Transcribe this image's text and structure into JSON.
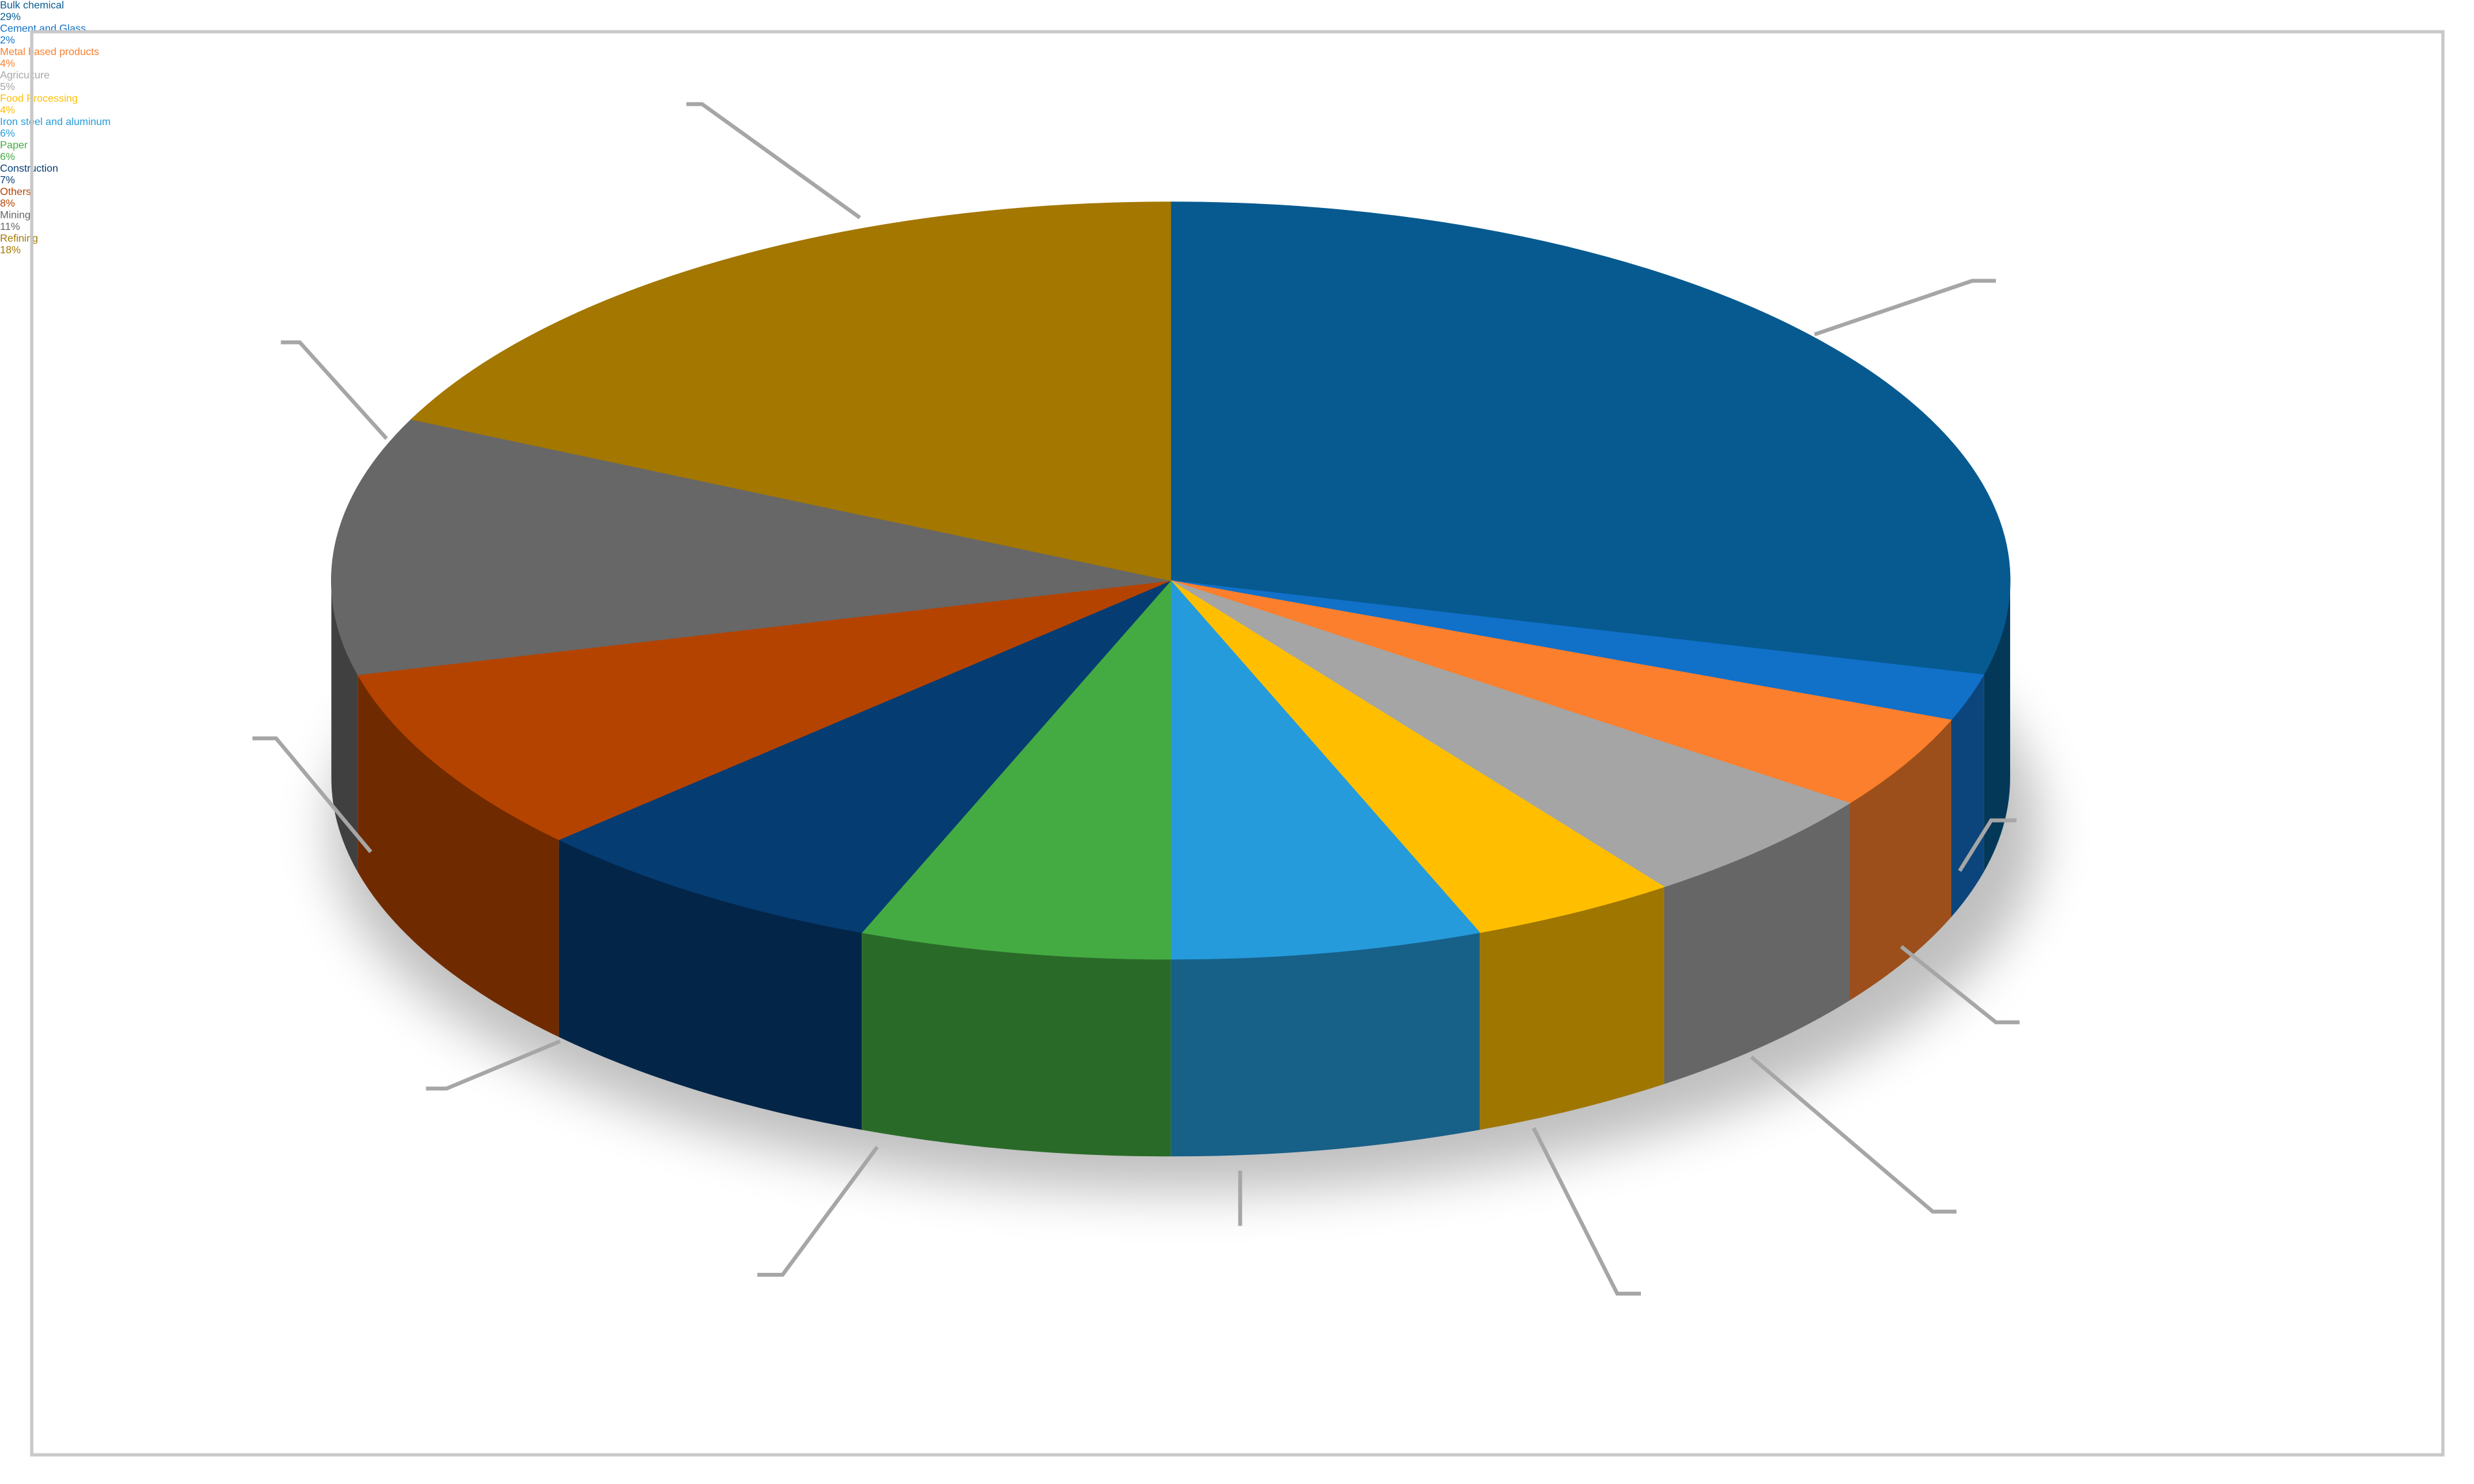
{
  "chart_data": {
    "type": "pie",
    "categories": [
      "Bulk chemical",
      "Cement and Glass",
      "Metal based products",
      "Agriculture",
      "Food Processing",
      "Iron steel and aluminum",
      "Paper",
      "Construction",
      "Others",
      "Mining",
      "Refining"
    ],
    "values": [
      29,
      2,
      4,
      5,
      4,
      6,
      6,
      7,
      8,
      11,
      18
    ],
    "value_labels": [
      "29%",
      "2%",
      "4%",
      "5%",
      "4%",
      "6%",
      "6%",
      "7%",
      "8%",
      "11%",
      "18%"
    ],
    "colors": [
      "#065a90",
      "#1170c8",
      "#fb7f2c",
      "#a5a5a5",
      "#ffbf00",
      "#259bdb",
      "#44ab42",
      "#053c72",
      "#b54300",
      "#676767",
      "#a37700"
    ]
  }
}
